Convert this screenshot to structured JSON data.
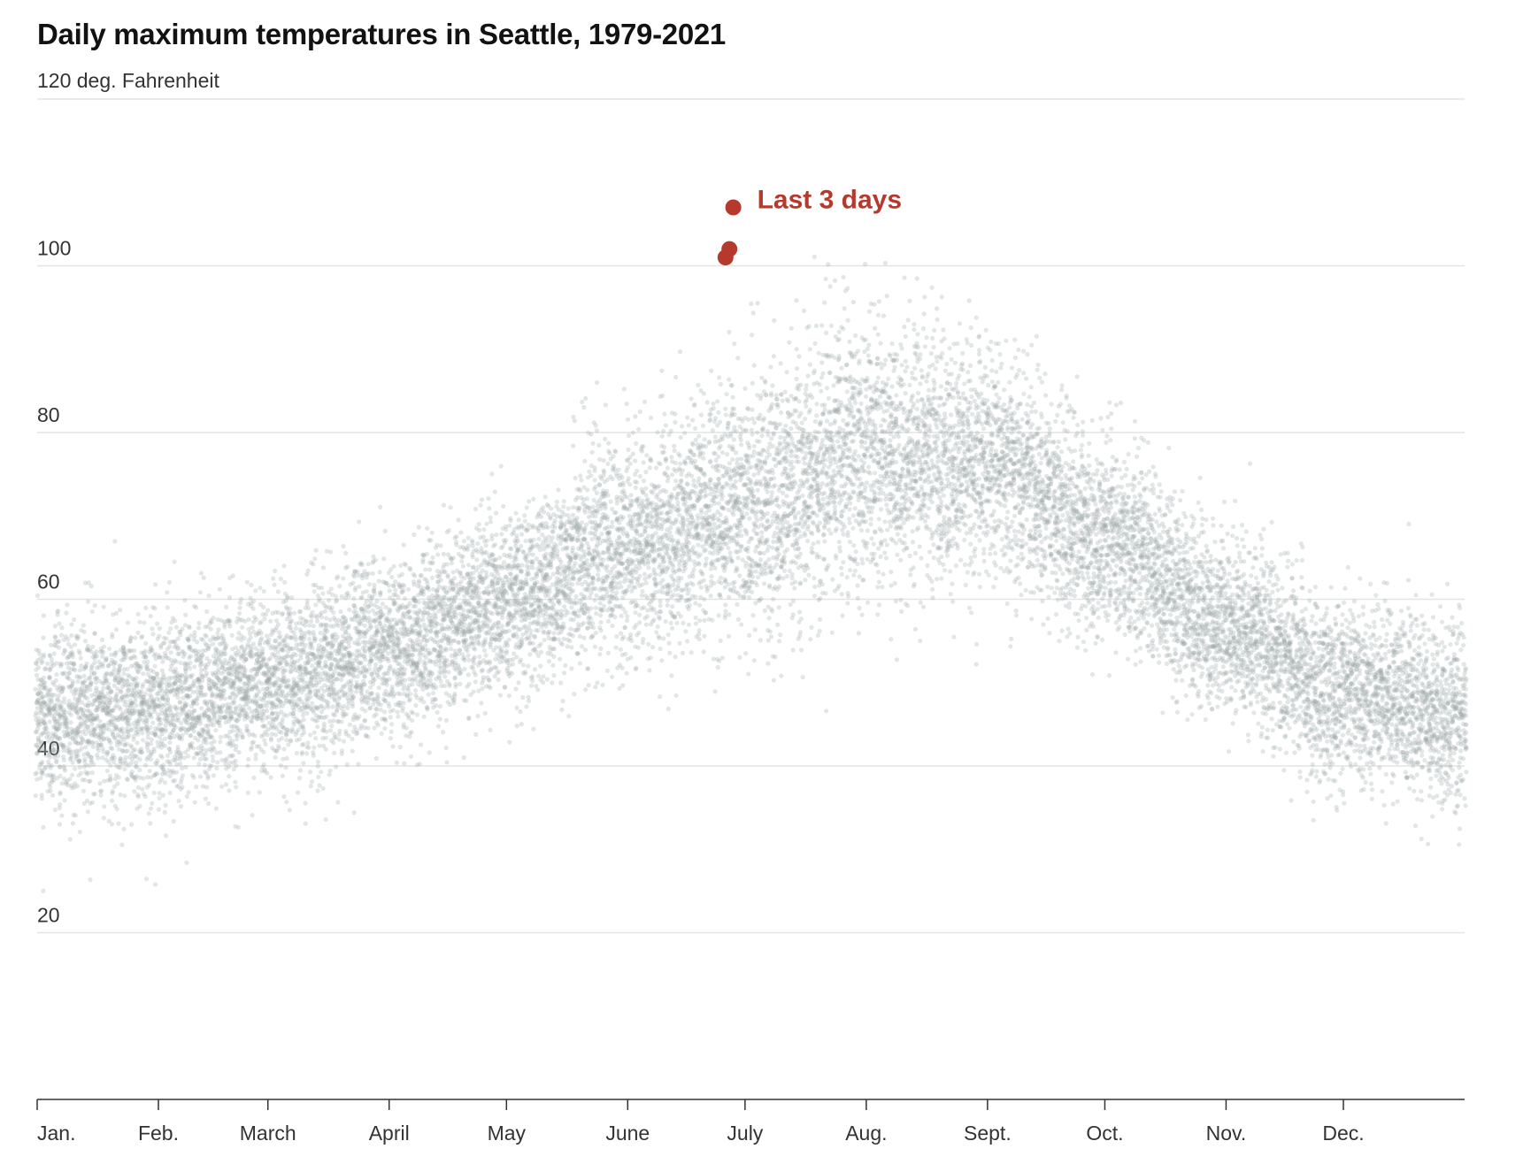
{
  "chart_data": {
    "type": "scatter",
    "title": "Daily maximum temperatures in Seattle, 1979-2021",
    "unit_label": "120 deg. Fahrenheit",
    "ylim": [
      0,
      120
    ],
    "y_ticks": [
      20,
      40,
      60,
      80,
      100
    ],
    "x_ticks": [
      "Jan.",
      "Feb.",
      "March",
      "April",
      "May",
      "June",
      "July",
      "Aug.",
      "Sept.",
      "Oct.",
      "Nov.",
      "Dec."
    ],
    "x_tick_day_of_year": [
      1,
      32,
      60,
      91,
      121,
      152,
      182,
      213,
      244,
      274,
      305,
      335
    ],
    "x_domain_days": [
      1,
      366
    ],
    "grid": true,
    "series": [
      {
        "years": "1979-2021",
        "color": "#9aa5a5",
        "seasonal_normal_high": [
          {
            "x": 1,
            "y": 46
          },
          {
            "x": 32,
            "y": 47
          },
          {
            "x": 60,
            "y": 50
          },
          {
            "x": 91,
            "y": 54
          },
          {
            "x": 121,
            "y": 60
          },
          {
            "x": 152,
            "y": 66
          },
          {
            "x": 182,
            "y": 71
          },
          {
            "x": 213,
            "y": 77
          },
          {
            "x": 244,
            "y": 76
          },
          {
            "x": 274,
            "y": 67
          },
          {
            "x": 305,
            "y": 57
          },
          {
            "x": 335,
            "y": 49
          },
          {
            "x": 366,
            "y": 46
          }
        ]
      },
      {
        "name": "Last 3 days",
        "color": "#b5392c",
        "points": [
          {
            "x": 177,
            "y": 101
          },
          {
            "x": 178,
            "y": 102
          },
          {
            "x": 179,
            "y": 107
          }
        ]
      }
    ],
    "annotations": [
      {
        "text": "Last 3 days",
        "color": "#b5392c"
      }
    ]
  }
}
